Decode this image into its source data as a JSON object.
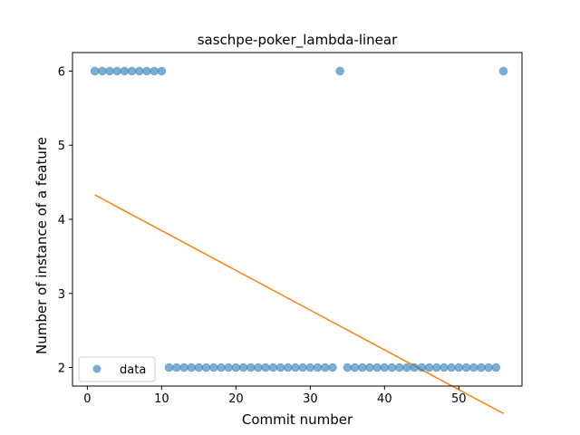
{
  "chart_data": {
    "type": "scatter",
    "title": "saschpe-poker_lambda-linear",
    "xlabel": "Commit number",
    "ylabel": "Number of instance of a feature",
    "xlim": [
      -2,
      58.5
    ],
    "ylim": [
      1.75,
      6.25
    ],
    "xticks": [
      0,
      10,
      20,
      30,
      40,
      50
    ],
    "yticks": [
      2,
      3,
      4,
      5,
      6
    ],
    "grid": false,
    "legend": {
      "position": "lower-left",
      "entries": [
        "data"
      ]
    },
    "series": [
      {
        "name": "data",
        "kind": "scatter",
        "color": "#1f77b4",
        "x": [
          1,
          2,
          3,
          4,
          5,
          6,
          7,
          8,
          9,
          10,
          11,
          12,
          13,
          14,
          15,
          16,
          17,
          18,
          19,
          20,
          21,
          22,
          23,
          24,
          25,
          26,
          27,
          28,
          29,
          30,
          31,
          32,
          33,
          34,
          35,
          36,
          37,
          38,
          39,
          40,
          41,
          42,
          43,
          44,
          45,
          46,
          47,
          48,
          49,
          50,
          51,
          52,
          53,
          54,
          55,
          56
        ],
        "y": [
          6,
          6,
          6,
          6,
          6,
          6,
          6,
          6,
          6,
          6,
          2,
          2,
          2,
          2,
          2,
          2,
          2,
          2,
          2,
          2,
          2,
          2,
          2,
          2,
          2,
          2,
          2,
          2,
          2,
          2,
          2,
          2,
          2,
          6,
          2,
          2,
          2,
          2,
          2,
          2,
          2,
          2,
          2,
          2,
          2,
          2,
          2,
          2,
          2,
          2,
          2,
          2,
          2,
          2,
          2,
          6
        ]
      },
      {
        "kind": "line",
        "color": "#ff7f0e",
        "x": [
          1,
          56
        ],
        "y": [
          4.33,
          1.38
        ]
      }
    ]
  }
}
